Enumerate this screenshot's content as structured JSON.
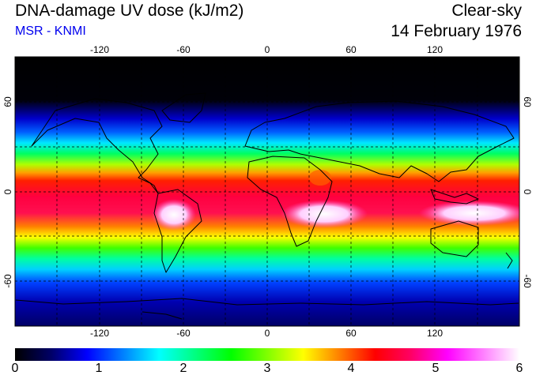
{
  "header": {
    "title": "DNA-damage UV dose (kJ/m2)",
    "subtitle": "MSR - KNMI",
    "sky_condition": "Clear-sky",
    "date": "14 February 1976"
  },
  "map": {
    "projection": "equirectangular",
    "lon_range": [
      -180,
      180
    ],
    "lat_range": [
      -90,
      90
    ],
    "lon_ticks": [
      "-120",
      "-60",
      "0",
      "60",
      "120"
    ],
    "lat_ticks": [
      "60",
      "0",
      "-60"
    ],
    "gridlines": "dashed"
  },
  "colorbar": {
    "min": 0,
    "max": 6,
    "labels": [
      "0",
      "1",
      "2",
      "3",
      "4",
      "5",
      "6"
    ],
    "colors": [
      "#000000",
      "#000066",
      "#0000ff",
      "#0080ff",
      "#00ffff",
      "#00ff80",
      "#00ff00",
      "#80ff00",
      "#ffff00",
      "#ff8000",
      "#ff0000",
      "#ff0066",
      "#ff00ff",
      "#ff80ff",
      "#ffffff"
    ]
  }
}
